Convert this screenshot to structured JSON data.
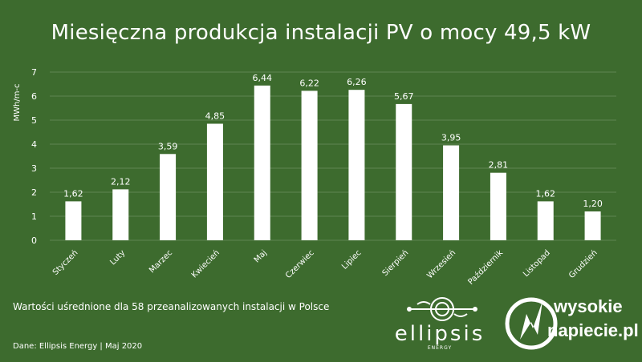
{
  "chart_data": {
    "type": "bar",
    "title": "Miesięczna produkcja instalacji PV o mocy 49,5 kW",
    "ylabel": "MWh/m-c",
    "xlabel": "",
    "ylim": [
      0,
      7
    ],
    "yticks": [
      "0",
      "1",
      "2",
      "3",
      "4",
      "5",
      "6",
      "7"
    ],
    "categories": [
      "Styczeń",
      "Luty",
      "Marzec",
      "Kwiecień",
      "Maj",
      "Czerwiec",
      "Lipiec",
      "Sierpień",
      "Wrzesień",
      "Październik",
      "Listopad",
      "Grudzień"
    ],
    "values": [
      1.62,
      2.12,
      3.59,
      4.85,
      6.44,
      6.22,
      6.26,
      5.67,
      3.95,
      2.81,
      1.62,
      1.2
    ],
    "value_labels": [
      "1,62",
      "2,12",
      "3,59",
      "4,85",
      "6,44",
      "6,22",
      "6,26",
      "5,67",
      "3,95",
      "2,81",
      "1,62",
      "1,20"
    ],
    "grid": true,
    "legend": "none",
    "colors": {
      "background": "#3d6b2e",
      "bars": "#ffffff",
      "grid": "#5f8551",
      "text": "#ffffff"
    }
  },
  "footnote": "Wartości uśrednione dla 58 przeanalizowanych instalacji w Polsce",
  "source": "Dane: Ellipsis Energy |   Maj 2020",
  "logos": {
    "ellipsis_word": "ellipsis",
    "ellipsis_sub": "ENERGY",
    "wn_line1": "wysokie",
    "wn_line2": "napiecie.pl"
  }
}
